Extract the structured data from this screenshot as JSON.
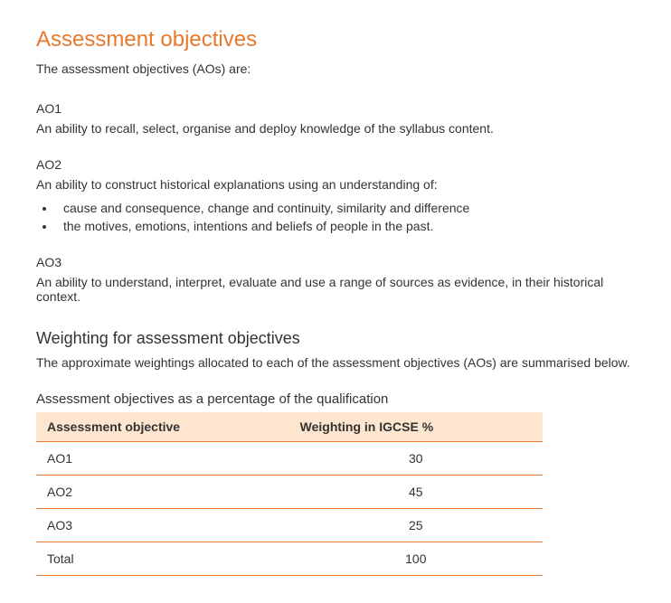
{
  "heading": "Assessment objectives",
  "intro": "The assessment objectives (AOs) are:",
  "ao1": {
    "label": "AO1",
    "desc": "An ability to recall, select, organise and deploy knowledge of the syllabus content."
  },
  "ao2": {
    "label": "AO2",
    "desc": "An ability to construct historical explanations using an understanding of:",
    "bullets": [
      "cause and consequence, change and continuity, similarity and difference",
      "the motives, emotions, intentions and beliefs of people in the past."
    ]
  },
  "ao3": {
    "label": "AO3",
    "desc": "An ability to understand, interpret, evaluate and use a range of sources as evidence, in their historical context."
  },
  "weighting": {
    "heading": "Weighting for assessment objectives",
    "intro": "The approximate weightings allocated to each of the assessment objectives (AOs) are summarised below.",
    "table_caption": "Assessment objectives as a percentage of the qualification",
    "table": {
      "type": "table",
      "header_bg": "#fde5d0",
      "border_color": "#e8792b",
      "columns": [
        "Assessment objective",
        "Weighting in IGCSE %"
      ],
      "col_align": [
        "left",
        "center"
      ],
      "rows": [
        [
          "AO1",
          "30"
        ],
        [
          "AO2",
          "45"
        ],
        [
          "AO3",
          "25"
        ],
        [
          "Total",
          "100"
        ]
      ]
    }
  },
  "colors": {
    "accent": "#e8792b",
    "text": "#333333",
    "table_header_bg": "#fde5d0",
    "background": "#ffffff"
  },
  "typography": {
    "body_fontsize_pt": 11,
    "heading_fontsize_pt": 18,
    "subheading_fontsize_pt": 14,
    "font_family": "Arial"
  }
}
